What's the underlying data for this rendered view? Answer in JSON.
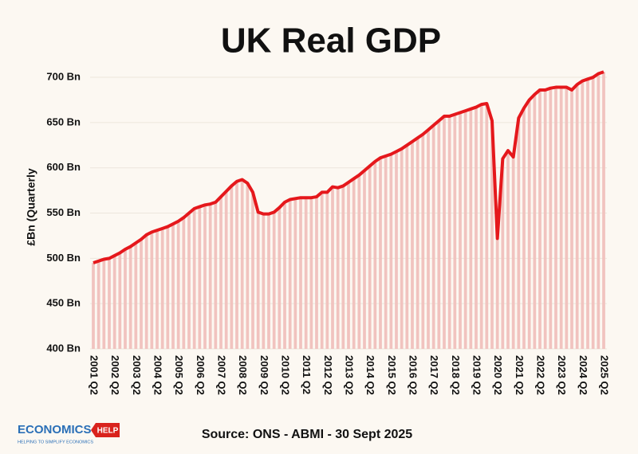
{
  "chart_data": {
    "type": "bar-line",
    "title": "UK Real GDP",
    "y_label": "£Bn (Quarterly",
    "source": "Source: ONS - ABMI - 30 Sept 2025",
    "logo": {
      "name": "ECONOMICS",
      "tag": "HELP",
      "tagline": "HELPING TO SIMPLIFY ECONOMICS"
    },
    "color": "#e5181c",
    "bar_color": "#f1c3bf",
    "grid": true,
    "categories": [
      "2001 Q2",
      null,
      null,
      null,
      "2002 Q2",
      null,
      null,
      null,
      "2003 Q2",
      null,
      null,
      null,
      "2004 Q2",
      null,
      null,
      null,
      "2005 Q2",
      null,
      null,
      null,
      "2006 Q2",
      null,
      null,
      null,
      "2007 Q2",
      null,
      null,
      null,
      "2008 Q2",
      null,
      null,
      null,
      "2009 Q2",
      null,
      null,
      null,
      "2010 Q2",
      null,
      null,
      null,
      "2011 Q2",
      null,
      null,
      null,
      "2012 Q2",
      null,
      null,
      null,
      "2013 Q2",
      null,
      null,
      null,
      "2014 Q2",
      null,
      null,
      null,
      "2015 Q2",
      null,
      null,
      null,
      "2016 Q2",
      null,
      null,
      null,
      "2017 Q2",
      null,
      null,
      null,
      "2018 Q2",
      null,
      null,
      null,
      "2019 Q2",
      null,
      null,
      null,
      "2020 Q2",
      null,
      null,
      null,
      "2021 Q2",
      null,
      null,
      null,
      "2022 Q2",
      null,
      null,
      null,
      "2023 Q2",
      null,
      null,
      null,
      "2024 Q2",
      null,
      null,
      null,
      "2025 Q2"
    ],
    "values": [
      495,
      497,
      499,
      500,
      503,
      506,
      510,
      513,
      517,
      521,
      526,
      529,
      531,
      533,
      535,
      538,
      541,
      545,
      550,
      555,
      557,
      559,
      560,
      562,
      568,
      574,
      580,
      585,
      587,
      583,
      573,
      551,
      549,
      549,
      551,
      556,
      562,
      565,
      566,
      567,
      567,
      567,
      568,
      573,
      573,
      579,
      578,
      580,
      584,
      588,
      592,
      597,
      602,
      607,
      611,
      613,
      615,
      618,
      621,
      625,
      629,
      633,
      637,
      642,
      647,
      652,
      657,
      657,
      659,
      661,
      663,
      665,
      667,
      670,
      671,
      652,
      522,
      610,
      619,
      612,
      655,
      666,
      675,
      681,
      686,
      686,
      688,
      689,
      689,
      689,
      686,
      692,
      696,
      698,
      700,
      704,
      706
    ],
    "ylim": [
      400,
      715
    ],
    "yticks": [
      {
        "value": 400,
        "label": "400 Bn"
      },
      {
        "value": 450,
        "label": "450 Bn"
      },
      {
        "value": 500,
        "label": "500 Bn"
      },
      {
        "value": 550,
        "label": "550 Bn"
      },
      {
        "value": 600,
        "label": "600 Bn"
      },
      {
        "value": 650,
        "label": "650 Bn"
      },
      {
        "value": 700,
        "label": "700 Bn"
      }
    ]
  }
}
